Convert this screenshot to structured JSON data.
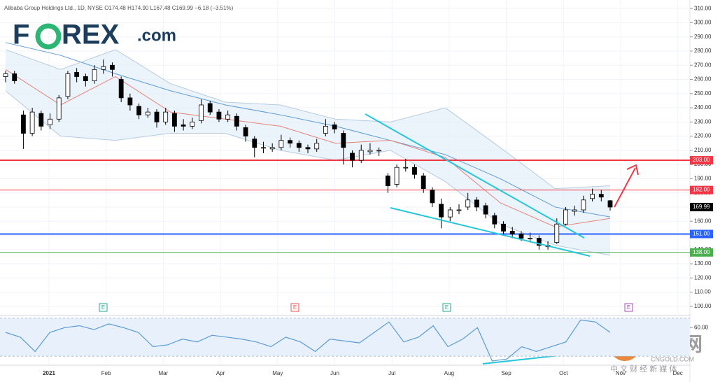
{
  "chart_data": {
    "type": "candlestick",
    "header": "Alibaba Group Holdings Ltd., 1D, NYSE  O174.48 H174.90 L167.48 C169.99 −6.18 (−3.51%)",
    "logo_left": "F",
    "logo_right": "REX",
    "logo_suffix": ".com",
    "watermark": "中金网",
    "watermark_url": "CNGOLD.COM",
    "watermark_sub": "中 文 财 经 新 媒 体",
    "x_labels": [
      "2021",
      "Feb",
      "Mar",
      "Apr",
      "May",
      "Jun",
      "Jul",
      "Aug",
      "Sep",
      "Oct",
      "Nov",
      "Dec"
    ],
    "up_color": "#ffffff",
    "down_color": "#000000",
    "candles": [
      [
        262,
        266,
        258,
        264
      ],
      [
        264,
        266,
        257,
        259
      ],
      [
        235,
        238,
        211,
        222
      ],
      [
        222,
        240,
        220,
        237
      ],
      [
        236,
        238,
        224,
        227
      ],
      [
        228,
        236,
        225,
        232
      ],
      [
        232,
        249,
        230,
        247
      ],
      [
        248,
        266,
        246,
        264
      ],
      [
        265,
        268,
        258,
        262
      ],
      [
        262,
        264,
        255,
        259
      ],
      [
        259,
        270,
        257,
        267
      ],
      [
        267,
        274,
        264,
        269
      ],
      [
        270,
        272,
        262,
        267
      ],
      [
        260,
        262,
        244,
        247
      ],
      [
        247,
        250,
        238,
        242
      ],
      [
        241,
        243,
        232,
        235
      ],
      [
        235,
        240,
        233,
        237
      ],
      [
        237,
        239,
        226,
        230
      ],
      [
        230,
        240,
        228,
        237
      ],
      [
        236,
        238,
        223,
        227
      ],
      [
        228,
        232,
        224,
        227
      ],
      [
        227,
        233,
        225,
        230
      ],
      [
        231,
        246,
        229,
        242
      ],
      [
        243,
        245,
        235,
        237
      ],
      [
        237,
        239,
        230,
        232
      ],
      [
        232,
        238,
        230,
        235
      ],
      [
        234,
        236,
        224,
        227
      ],
      [
        226,
        228,
        216,
        220
      ],
      [
        218,
        220,
        205,
        212
      ],
      [
        212,
        216,
        208,
        212
      ],
      [
        211,
        215,
        209,
        212
      ],
      [
        212,
        221,
        210,
        217
      ],
      [
        217,
        219,
        212,
        215
      ],
      [
        215,
        217,
        209,
        212
      ],
      [
        212,
        214,
        208,
        211
      ],
      [
        211,
        218,
        209,
        215
      ],
      [
        222,
        232,
        220,
        227
      ],
      [
        228,
        230,
        222,
        225
      ],
      [
        222,
        224,
        200,
        212
      ],
      [
        208,
        210,
        198,
        203
      ],
      [
        203,
        214,
        201,
        210
      ],
      [
        209,
        215,
        207,
        210
      ],
      [
        210,
        212,
        206,
        210
      ],
      [
        192,
        194,
        180,
        185
      ],
      [
        186,
        200,
        184,
        198
      ],
      [
        198,
        204,
        195,
        198
      ],
      [
        198,
        200,
        190,
        193
      ],
      [
        192,
        194,
        180,
        183
      ],
      [
        182,
        184,
        170,
        173
      ],
      [
        172,
        176,
        155,
        163
      ],
      [
        163,
        170,
        160,
        168
      ],
      [
        168,
        172,
        165,
        168
      ],
      [
        170,
        180,
        168,
        175
      ],
      [
        175,
        177,
        167,
        170
      ],
      [
        171,
        173,
        162,
        165
      ],
      [
        164,
        166,
        155,
        158
      ],
      [
        158,
        160,
        150,
        153
      ],
      [
        153,
        156,
        148,
        151
      ],
      [
        151,
        153,
        146,
        148
      ],
      [
        148,
        152,
        145,
        148
      ],
      [
        148,
        150,
        140,
        143
      ],
      [
        142,
        146,
        140,
        143
      ],
      [
        145,
        162,
        144,
        158
      ],
      [
        158,
        170,
        157,
        168
      ],
      [
        167,
        171,
        164,
        168
      ],
      [
        168,
        178,
        166,
        175
      ],
      [
        176,
        183,
        174,
        179
      ],
      [
        179,
        182,
        174,
        177
      ],
      [
        174.48,
        174.9,
        167.48,
        169.99
      ]
    ],
    "series": [
      {
        "name": "MA slow",
        "color": "#5b9bd5",
        "values": [
          286,
          277,
          264,
          252,
          242,
          235,
          227,
          217,
          207,
          190,
          170,
          163
        ]
      },
      {
        "name": "MA fast",
        "color": "#e8837a",
        "values": [
          267,
          242,
          262,
          237,
          232,
          227,
          215,
          217,
          205,
          173,
          156,
          162
        ]
      },
      {
        "name": "Band upper",
        "color": "#b7cbe0",
        "values": [
          281,
          267,
          281,
          257,
          244,
          242,
          232,
          230,
          240,
          212,
          183,
          185
        ]
      },
      {
        "name": "Band lower",
        "color": "#b7cbe0",
        "values": [
          252,
          220,
          217,
          222,
          222,
          210,
          203,
          210,
          188,
          158,
          143,
          136
        ]
      }
    ],
    "levels": [
      {
        "value": 203,
        "label": "203.00",
        "color": "#f23645",
        "width": 2
      },
      {
        "value": 182,
        "label": "182.00",
        "color": "#f23645",
        "width": 1
      },
      {
        "value": 151,
        "label": "151.00",
        "color": "#2962ff",
        "width": 2
      },
      {
        "value": 138,
        "label": "138.00",
        "color": "#4caf50",
        "width": 1
      }
    ],
    "last_price": {
      "value": 169.99,
      "label": "169.99"
    },
    "ylim": [
      94,
      316
    ],
    "yticks": [
      {
        "value": 100,
        "label": "100.00"
      },
      {
        "value": 110,
        "label": "110.00"
      },
      {
        "value": 120,
        "label": "120.00"
      },
      {
        "value": 130,
        "label": "130.00"
      },
      {
        "value": 140,
        "label": "140.00"
      },
      {
        "value": 150,
        "label": "150.00"
      },
      {
        "value": 160,
        "label": "160.00"
      },
      {
        "value": 170,
        "label": "170.00"
      },
      {
        "value": 180,
        "label": "180.00"
      },
      {
        "value": 190,
        "label": "190.00"
      },
      {
        "value": 200,
        "label": "200.00"
      },
      {
        "value": 210,
        "label": "210.00"
      },
      {
        "value": 220,
        "label": "220.00"
      },
      {
        "value": 230,
        "label": "230.00"
      },
      {
        "value": 240,
        "label": "240.00"
      },
      {
        "value": 250,
        "label": "250.00"
      },
      {
        "value": 260,
        "label": "260.00"
      },
      {
        "value": 270,
        "label": "270.00"
      },
      {
        "value": 280,
        "label": "280.00"
      },
      {
        "value": 290,
        "label": "290.00"
      },
      {
        "value": 300,
        "label": "300.00"
      },
      {
        "value": 310,
        "label": "310.00"
      }
    ],
    "rsi": {
      "color": "#5b9bd5",
      "values": [
        55,
        50,
        35,
        55,
        60,
        62,
        58,
        64,
        60,
        55,
        40,
        42,
        48,
        45,
        52,
        50,
        48,
        45,
        40,
        50,
        45,
        35,
        48,
        46,
        44,
        55,
        66,
        45,
        50,
        62,
        40,
        48,
        60,
        25,
        27,
        40,
        35,
        40,
        45,
        68,
        66,
        55
      ],
      "ylim": [
        22,
        72
      ],
      "band": [
        30,
        70
      ],
      "yticks": [
        {
          "value": 60,
          "label": "60.00"
        }
      ]
    },
    "grid": true
  }
}
